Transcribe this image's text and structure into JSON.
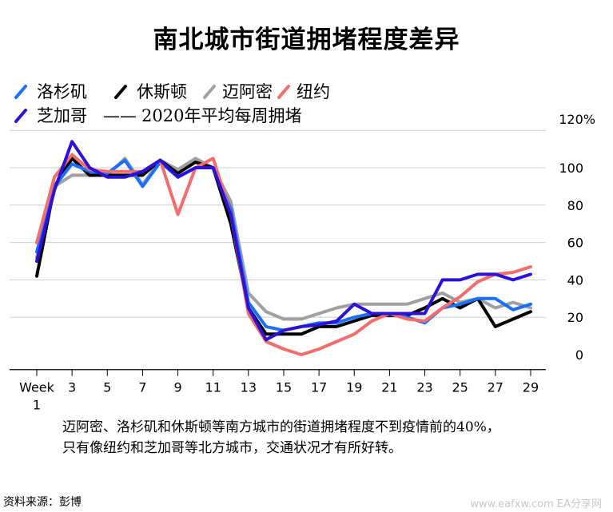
{
  "title": "南北城市街道拥堵程度差异",
  "legend": [
    {
      "label": "洛杉矶",
      "color": "#1a6fff"
    },
    {
      "label": "休斯顿",
      "color": "#000000"
    },
    {
      "label": "迈阿密",
      "color": "#a0a0a0"
    },
    {
      "label": "纽约",
      "color": "#f46d6d"
    },
    {
      "label": "芝加哥",
      "color": "#2b12d6"
    }
  ],
  "baseline_note": "2020年平均每周拥堵",
  "baseline_dash": "——",
  "caption_line1": "迈阿密、洛杉矶和休斯顿等南方城市的街道拥堵程度不到疫情前的40%，",
  "caption_line2": "只有像纽约和芝加哥等北方城市，交通状况才有所好转。",
  "source": "资料来源：彭博",
  "watermark": "www.eafxw.com  EA分享网",
  "chart_data": {
    "type": "line",
    "title": "南北城市街道拥堵程度差异",
    "x_tick_labels": [
      "Week 1",
      "3",
      "5",
      "7",
      "9",
      "11",
      "13",
      "15",
      "17",
      "19",
      "21",
      "23",
      "25",
      "27",
      "29"
    ],
    "x": [
      1,
      2,
      3,
      4,
      5,
      6,
      7,
      8,
      9,
      10,
      11,
      12,
      13,
      14,
      15,
      16,
      17,
      18,
      19,
      20,
      21,
      22,
      23,
      24,
      25,
      26,
      27,
      28,
      29
    ],
    "ylim": [
      -8,
      120
    ],
    "y_ticks": [
      0,
      20,
      40,
      60,
      80,
      100
    ],
    "y_top_label": "120%",
    "grid": true,
    "legend_position": "top-left",
    "series": [
      {
        "name": "洛杉矶",
        "color": "#1a6fff",
        "values": [
          55,
          90,
          102,
          98,
          97,
          104,
          90,
          103,
          95,
          100,
          100,
          78,
          28,
          15,
          13,
          15,
          17,
          17,
          20,
          22,
          22,
          20,
          17,
          25,
          27,
          30,
          30,
          24,
          27
        ]
      },
      {
        "name": "休斯顿",
        "color": "#000000",
        "values": [
          42,
          90,
          105,
          96,
          96,
          96,
          96,
          104,
          97,
          103,
          100,
          70,
          25,
          11,
          11,
          11,
          15,
          15,
          18,
          21,
          21,
          21,
          25,
          30,
          25,
          30,
          15,
          19,
          23
        ]
      },
      {
        "name": "迈阿密",
        "color": "#a0a0a0",
        "values": [
          52,
          90,
          96,
          96,
          96,
          105,
          91,
          104,
          99,
          105,
          100,
          82,
          33,
          23,
          19,
          19,
          22,
          25,
          27,
          27,
          27,
          27,
          30,
          33,
          28,
          30,
          25,
          28,
          25
        ]
      },
      {
        "name": "纽约",
        "color": "#f46d6d",
        "values": [
          60,
          95,
          107,
          99,
          98,
          98,
          98,
          104,
          75,
          100,
          105,
          75,
          22,
          7,
          3,
          0,
          3,
          7,
          11,
          18,
          22,
          19,
          18,
          25,
          31,
          39,
          43,
          44,
          47
        ]
      },
      {
        "name": "芝加哥",
        "color": "#2b12d6",
        "values": [
          50,
          88,
          114,
          100,
          95,
          95,
          98,
          104,
          95,
          100,
          100,
          75,
          25,
          8,
          13,
          15,
          16,
          18,
          27,
          22,
          22,
          22,
          22,
          40,
          40,
          43,
          43,
          40,
          43
        ]
      }
    ]
  }
}
